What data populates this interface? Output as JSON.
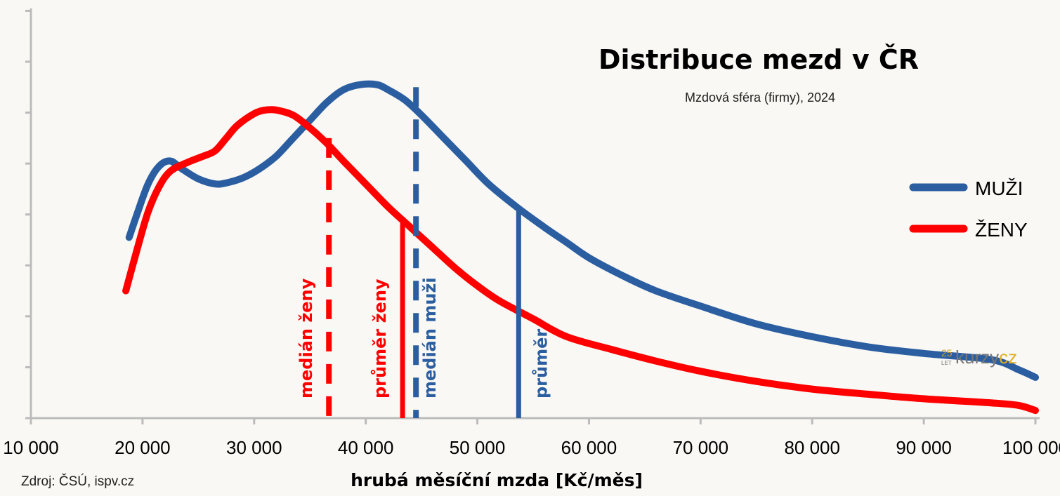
{
  "chart_data": {
    "type": "line",
    "title": "Distribuce mezd v ČR",
    "subtitle": "Mzdová sféra (firmy), 2024",
    "xlabel": "hrubá měsíční mzda [Kč/měs]",
    "ylabel": "",
    "xlim": [
      10000,
      100000
    ],
    "ylim": [
      0,
      7
    ],
    "x_ticks": [
      10000,
      20000,
      30000,
      40000,
      50000,
      60000,
      70000,
      80000,
      90000,
      100000
    ],
    "x_tick_labels": [
      "10 000",
      "20 000",
      "30 000",
      "40 000",
      "50 000",
      "60 000",
      "70 000",
      "80 000",
      "90 000",
      "100 000"
    ],
    "y_tick_count": 8,
    "y_tick_labels_shown": false,
    "grid": false,
    "legend_position": "right",
    "series": [
      {
        "name": "MUŽI",
        "color": "#2b5ea1",
        "x": [
          18800,
          19500,
          20500,
          21500,
          22500,
          23500,
          25000,
          26500,
          27500,
          29000,
          30500,
          32000,
          33500,
          35000,
          36500,
          38000,
          39500,
          41000,
          42000,
          43500,
          45000,
          47000,
          49000,
          51000,
          53500,
          56000,
          58000,
          60000,
          63000,
          66000,
          70000,
          75000,
          80000,
          85000,
          90000,
          96000,
          98500,
          100000
        ],
        "values": [
          3.55,
          4.0,
          4.6,
          4.95,
          5.05,
          4.9,
          4.7,
          4.6,
          4.62,
          4.72,
          4.9,
          5.15,
          5.5,
          5.85,
          6.2,
          6.45,
          6.55,
          6.55,
          6.45,
          6.25,
          5.95,
          5.5,
          5.05,
          4.6,
          4.15,
          3.75,
          3.45,
          3.15,
          2.8,
          2.5,
          2.2,
          1.85,
          1.6,
          1.4,
          1.27,
          1.15,
          0.95,
          0.8
        ]
      },
      {
        "name": "ŽENY",
        "color": "#ff0000",
        "x": [
          18500,
          19500,
          20500,
          21500,
          22500,
          24000,
          25500,
          26500,
          27500,
          28500,
          30000,
          31000,
          32000,
          33500,
          35000,
          36500,
          38000,
          40000,
          42000,
          44000,
          46000,
          48000,
          50000,
          52000,
          55000,
          58000,
          62000,
          66000,
          70000,
          75000,
          80000,
          85000,
          90000,
          96000,
          98500,
          100000
        ],
        "values": [
          2.5,
          3.3,
          4.05,
          4.55,
          4.85,
          5.02,
          5.15,
          5.25,
          5.5,
          5.75,
          5.98,
          6.05,
          6.05,
          5.95,
          5.7,
          5.4,
          5.05,
          4.6,
          4.15,
          3.75,
          3.35,
          2.95,
          2.6,
          2.3,
          1.95,
          1.6,
          1.35,
          1.12,
          0.92,
          0.72,
          0.57,
          0.47,
          0.38,
          0.3,
          0.25,
          0.15
        ]
      }
    ],
    "markers": [
      {
        "label": "medián ženy",
        "x": 36700,
        "color": "#ff0000",
        "style": "dashed",
        "top": 5.5
      },
      {
        "label": "průměr ženy",
        "x": 43300,
        "color": "#ff0000",
        "style": "solid",
        "top": 3.95
      },
      {
        "label": "medián muži",
        "x": 44500,
        "color": "#2b5ea1",
        "style": "dashed",
        "top": 6.5
      },
      {
        "label": "průměr",
        "x": 53700,
        "color": "#2b5ea1",
        "style": "solid",
        "top": 4.15
      }
    ]
  },
  "source": "Zdroj: ČSÚ, ispv.cz",
  "logo": {
    "years": "25",
    "years_sub": "LET",
    "part1": "kurzy",
    "part2": "cz",
    "color1": "#777777",
    "color2": "#e0b020"
  }
}
